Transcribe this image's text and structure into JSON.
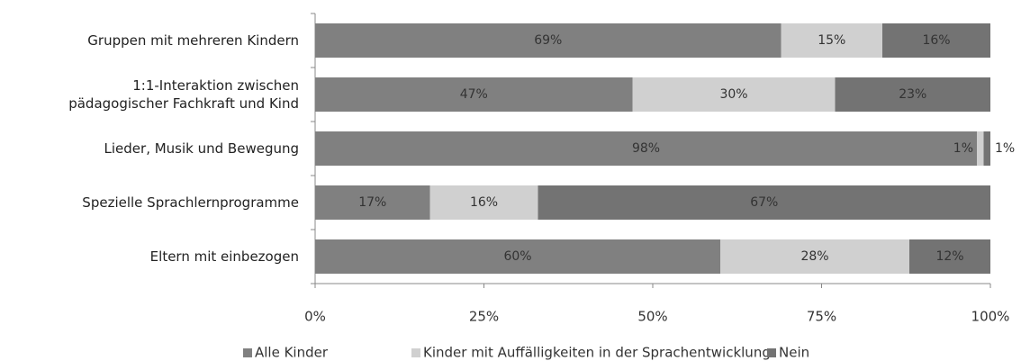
{
  "chart_data": {
    "type": "stacked-barh",
    "categories": [
      "Gruppen mit mehreren Kindern",
      "1:1-Interaktion zwischen\npädagogischer Fachkraft und Kind",
      "Lieder, Musik und Bewegung",
      "Spezielle Sprachlernprogramme",
      "Eltern mit einbezogen"
    ],
    "series": [
      {
        "name": "Alle Kinder",
        "color": "#808080",
        "values": [
          69,
          47,
          98,
          17,
          60
        ],
        "value_labels": [
          "69%",
          "47%",
          "98%",
          "17%",
          "60%"
        ]
      },
      {
        "name": "Kinder mit Auffälligkeiten in der Sprachentwicklung",
        "color": "#d0d0d0",
        "values": [
          15,
          30,
          1,
          16,
          28
        ],
        "value_labels": [
          "15%",
          "30%",
          "1%",
          "16%",
          "28%"
        ]
      },
      {
        "name": "Nein",
        "color": "#737373",
        "values": [
          16,
          23,
          1,
          67,
          12
        ],
        "value_labels": [
          "16%",
          "23%",
          "1%",
          "67%",
          "12%"
        ]
      }
    ],
    "xlim": [
      0,
      100
    ],
    "xticks": [
      {
        "value": 0,
        "label": "0%"
      },
      {
        "value": 25,
        "label": "25%"
      },
      {
        "value": 50,
        "label": "50%"
      },
      {
        "value": 75,
        "label": "75%"
      },
      {
        "value": 100,
        "label": "100%"
      }
    ],
    "legend": "bottom"
  }
}
